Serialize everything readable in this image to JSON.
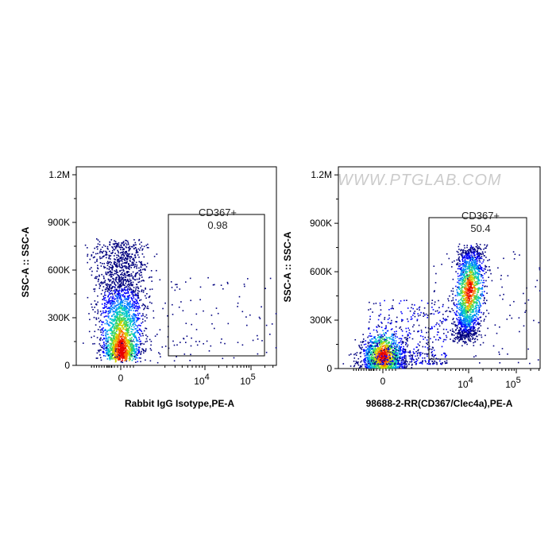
{
  "watermark": "WWW.PTGLAB.COM",
  "chart_data": [
    {
      "type": "scatter",
      "subtype": "flow-cytometry-density-plot",
      "xlabel": "Rabbit IgG Isotype,PE-A",
      "ylabel": "SSC-A :: SSC-A",
      "x_scale": "biexponential",
      "x_ticks": [
        "0",
        "10^4",
        "10^5"
      ],
      "y_ticks": [
        "0",
        "300K",
        "600K",
        "900K",
        "1.2M"
      ],
      "ylim": [
        0,
        1250000
      ],
      "gate": {
        "name": "CD367+",
        "value": "0.98",
        "x_range": [
          "~2x10^3",
          "~2.5x10^5"
        ],
        "y_range": [
          0,
          920000
        ]
      },
      "populations": [
        {
          "name": "main",
          "center_x": "0",
          "y_peak": 100000,
          "y_range": [
            40000,
            780000
          ]
        }
      ],
      "colors": [
        "#00007f",
        "#0000ff",
        "#007fff",
        "#00c8c8",
        "#3cd45a",
        "#d2d200",
        "#ff6a00",
        "#e60000"
      ]
    },
    {
      "type": "scatter",
      "subtype": "flow-cytometry-density-plot",
      "xlabel": "98688-2-RR(CD367/Clec4a),PE-A",
      "ylabel": "SSC-A :: SSC-A",
      "x_scale": "biexponential",
      "x_ticks": [
        "0",
        "10^4",
        "10^5"
      ],
      "y_ticks": [
        "0",
        "300K",
        "600K",
        "900K",
        "1.2M"
      ],
      "ylim": [
        0,
        1250000
      ],
      "gate": {
        "name": "CD367+",
        "value": "50.4",
        "x_range": [
          "~2x10^3",
          "~2.5x10^5"
        ],
        "y_range": [
          0,
          920000
        ]
      },
      "populations": [
        {
          "name": "negative",
          "center_x": "0",
          "y_peak": 80000,
          "y_range": [
            20000,
            400000
          ]
        },
        {
          "name": "positive",
          "center_x": "~10^4",
          "y_peak": 480000,
          "y_range": [
            150000,
            760000
          ]
        }
      ],
      "colors": [
        "#00007f",
        "#0000ff",
        "#007fff",
        "#00c8c8",
        "#3cd45a",
        "#d2d200",
        "#ff6a00",
        "#e60000"
      ]
    }
  ]
}
